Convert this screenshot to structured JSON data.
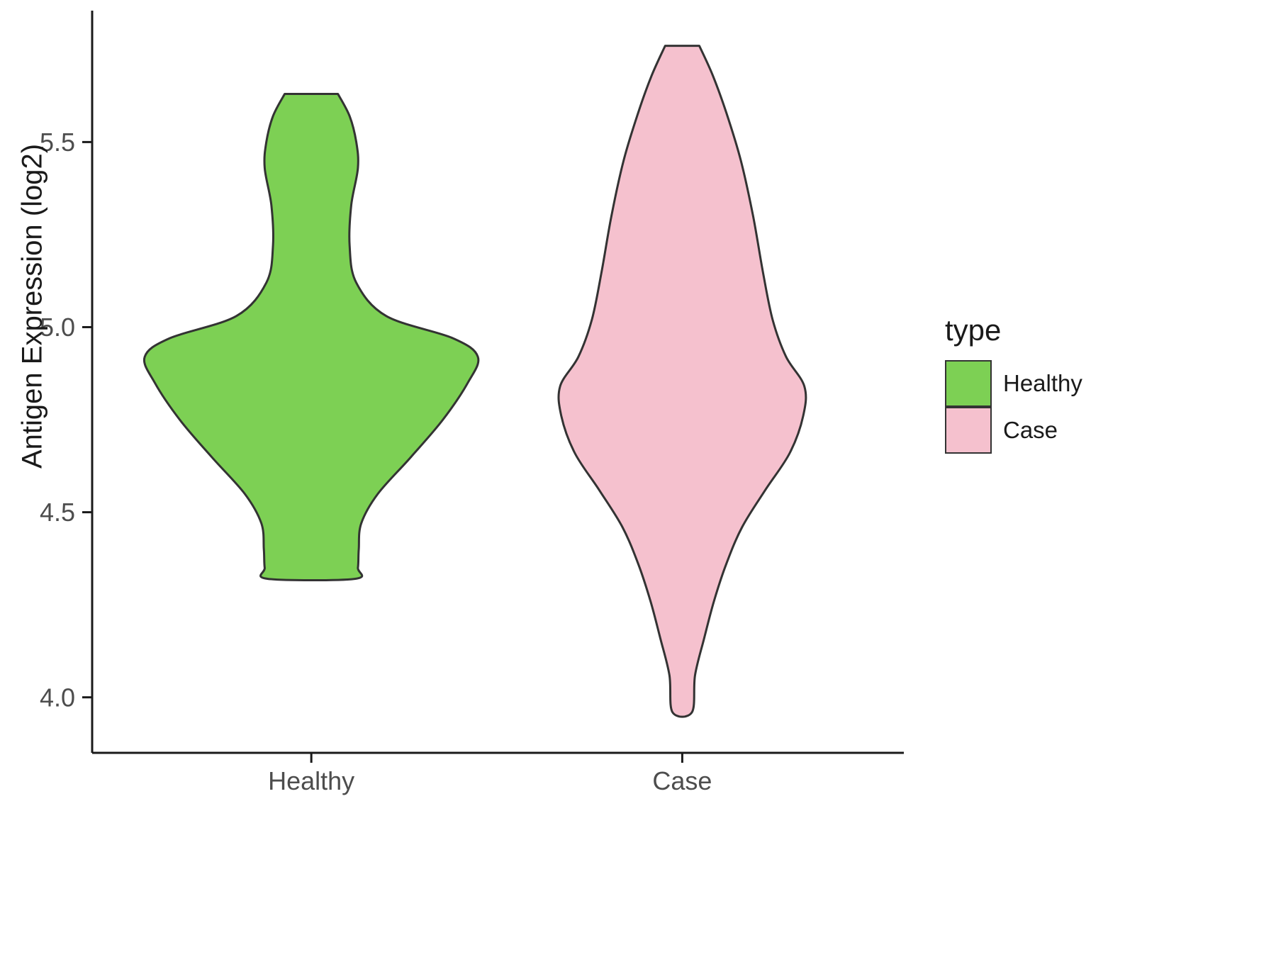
{
  "chart_data": {
    "type": "violin",
    "title": "",
    "xlabel": "",
    "ylabel": "Antigen Expression (log2)",
    "ylim": [
      3.85,
      5.855
    ],
    "yticks": {
      "values": [
        4.0,
        4.5,
        5.0,
        5.5
      ],
      "labels": [
        "4.0",
        "4.5",
        "5.0",
        "5.5"
      ]
    },
    "categories": [
      "Healthy",
      "Case"
    ],
    "grid": "off",
    "legend": {
      "title": "type",
      "position": "right",
      "entries": [
        {
          "label": "Healthy",
          "color": "#7dd054"
        },
        {
          "label": "Case",
          "color": "#f5c1ce"
        }
      ]
    },
    "series": [
      {
        "name": "Healthy",
        "fill": "#7dd054",
        "stroke": "#333333",
        "max_halfwidth_units": 0.45,
        "profile": [
          {
            "v": 5.63,
            "w": 0.16
          },
          {
            "v": 5.57,
            "w": 0.23
          },
          {
            "v": 5.5,
            "w": 0.27
          },
          {
            "v": 5.43,
            "w": 0.28
          },
          {
            "v": 5.33,
            "w": 0.24
          },
          {
            "v": 5.22,
            "w": 0.23
          },
          {
            "v": 5.12,
            "w": 0.27
          },
          {
            "v": 5.03,
            "w": 0.45
          },
          {
            "v": 4.97,
            "w": 0.85
          },
          {
            "v": 4.92,
            "w": 1.0
          },
          {
            "v": 4.85,
            "w": 0.94
          },
          {
            "v": 4.75,
            "w": 0.79
          },
          {
            "v": 4.65,
            "w": 0.6
          },
          {
            "v": 4.55,
            "w": 0.4
          },
          {
            "v": 4.47,
            "w": 0.3
          },
          {
            "v": 4.4,
            "w": 0.285
          },
          {
            "v": 4.35,
            "w": 0.28
          },
          {
            "v": 4.32,
            "w": 0.26
          }
        ]
      },
      {
        "name": "Case",
        "fill": "#f5c1ce",
        "stroke": "#333333",
        "max_halfwidth_units": 0.33,
        "profile": [
          {
            "v": 5.76,
            "w": 0.14
          },
          {
            "v": 5.68,
            "w": 0.25
          },
          {
            "v": 5.58,
            "w": 0.36
          },
          {
            "v": 5.45,
            "w": 0.48
          },
          {
            "v": 5.3,
            "w": 0.58
          },
          {
            "v": 5.15,
            "w": 0.66
          },
          {
            "v": 5.02,
            "w": 0.74
          },
          {
            "v": 4.92,
            "w": 0.85
          },
          {
            "v": 4.84,
            "w": 1.0
          },
          {
            "v": 4.76,
            "w": 0.99
          },
          {
            "v": 4.66,
            "w": 0.88
          },
          {
            "v": 4.56,
            "w": 0.68
          },
          {
            "v": 4.46,
            "w": 0.49
          },
          {
            "v": 4.36,
            "w": 0.36
          },
          {
            "v": 4.26,
            "w": 0.26
          },
          {
            "v": 4.16,
            "w": 0.18
          },
          {
            "v": 4.06,
            "w": 0.105
          },
          {
            "v": 3.96,
            "w": 0.08
          }
        ]
      }
    ],
    "style": {
      "axis_color": "#1a1a1a",
      "tick_label_color": "#4d4d4d",
      "outline_width": 3
    }
  }
}
